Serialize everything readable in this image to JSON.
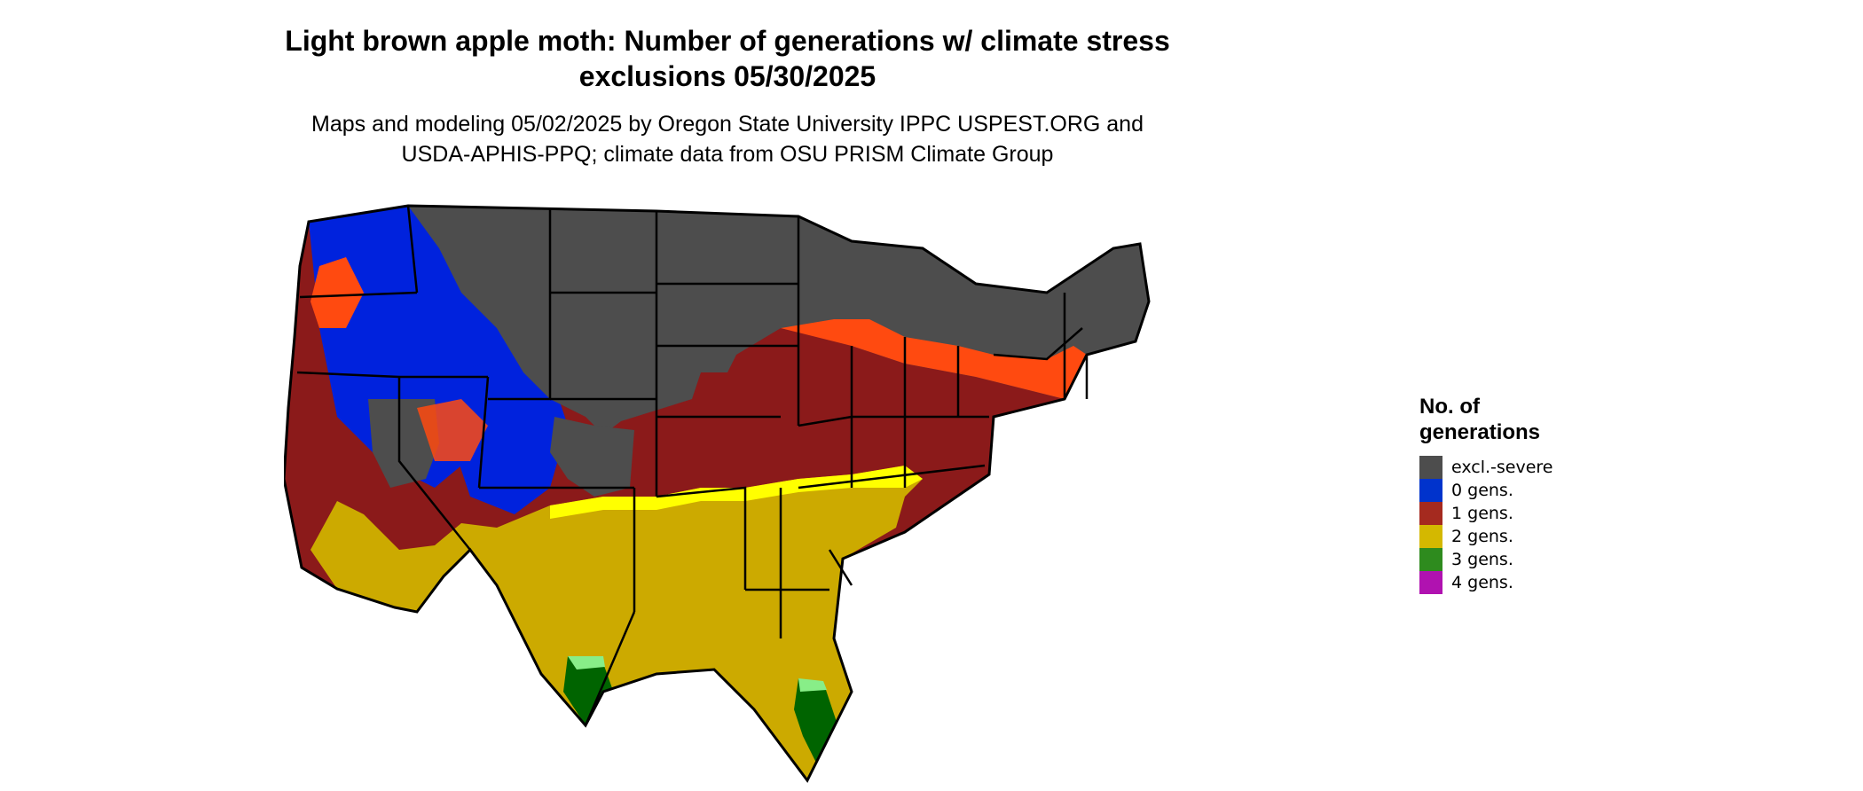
{
  "title": {
    "line1": "Light brown apple moth: Number of generations w/ climate stress",
    "line2": "exclusions 05/30/2025"
  },
  "subtitle": {
    "line1": "Maps and modeling 05/02/2025 by Oregon State University IPPC USPEST.ORG and",
    "line2": "USDA-APHIS-PPQ; climate data from OSU PRISM Climate Group"
  },
  "legend": {
    "title_line1": "No. of",
    "title_line2": "generations",
    "items": [
      {
        "label": "excl.-severe",
        "color": "#4d4d4d"
      },
      {
        "label": "0 gens.",
        "color": "#0033cc"
      },
      {
        "label": "1 gens.",
        "color": "#a52a1f"
      },
      {
        "label": "2 gens.",
        "color": "#d4b800"
      },
      {
        "label": "3 gens.",
        "color": "#2e8b1e"
      },
      {
        "label": "4 gens.",
        "color": "#b012b0"
      }
    ]
  },
  "map_colors": {
    "excluded": "#4d4d4d",
    "zero": "#0022dd",
    "one": "#8b1a1a",
    "one_edge": "#ff4a10",
    "two": "#ccaa00",
    "two_edge": "#ffff00",
    "three": "#006400",
    "three_edge": "#88ee88",
    "four": "#cc00cc"
  }
}
